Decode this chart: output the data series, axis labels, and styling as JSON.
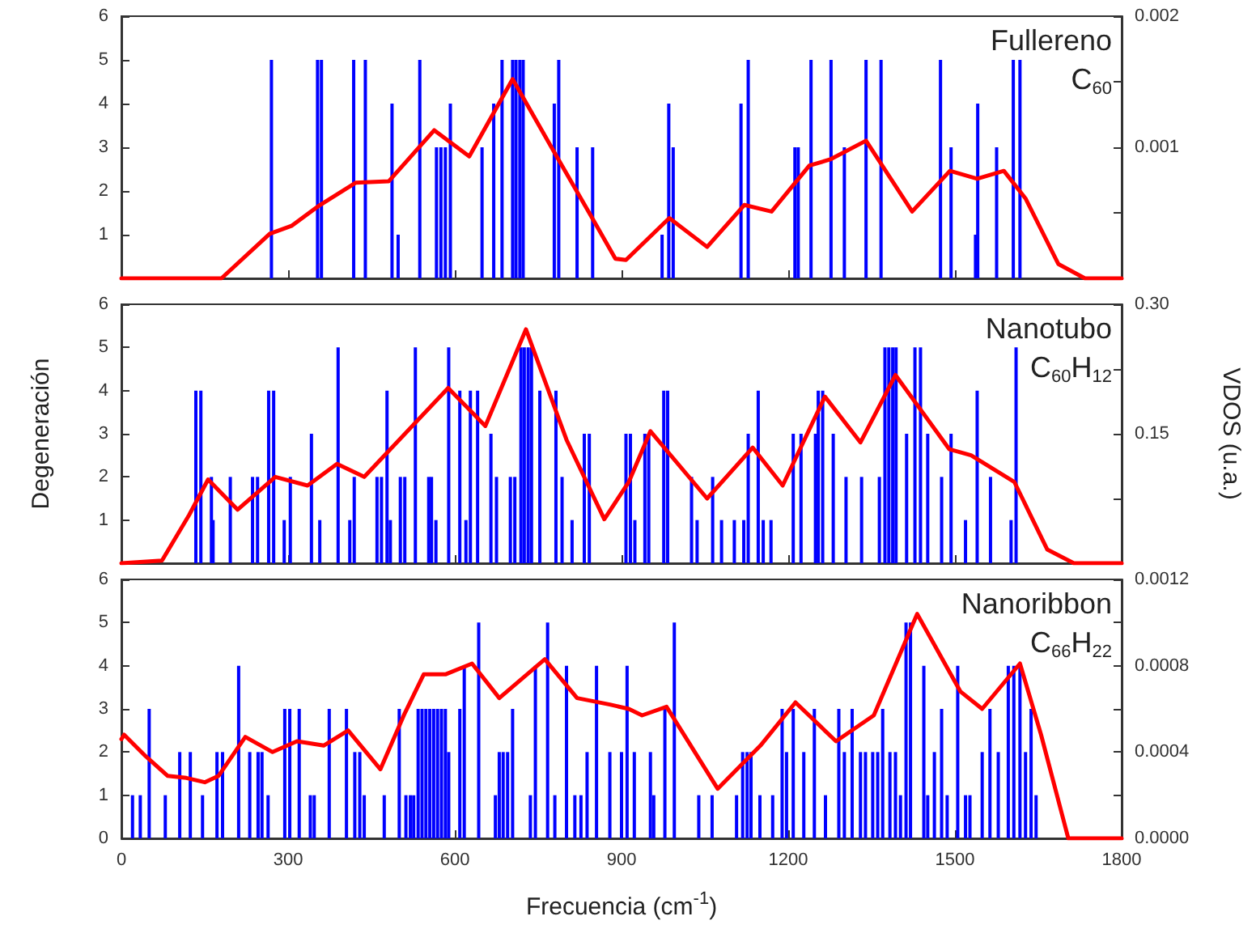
{
  "chart_data": [
    {
      "type": "bar",
      "marker": "none",
      "tick_labels": "y",
      "annotations": [
        "Fullereno",
        "C$_{60}$"
      ],
      "xlim": [
        0,
        1800
      ],
      "xticks": [
        0,
        300,
        600,
        900,
        1200,
        1500,
        1800
      ],
      "ylim": [
        0,
        6
      ],
      "yticks": [
        {
          "value": 0,
          "label": null
        },
        1,
        2,
        3,
        4,
        5,
        6
      ],
      "y2lim": [
        0,
        0.002
      ],
      "y2ticks": [
        {
          "value": 0,
          "label": null
        },
        {
          "value": 0.0005,
          "label": null
        },
        0.001,
        {
          "value": 0.0015,
          "label": null
        },
        0.002
      ],
      "series": [
        {
          "color": "#0000ff",
          "x": [
            270,
            353,
            360,
            418,
            439,
            487,
            498,
            537,
            567,
            575,
            583,
            592,
            649,
            670,
            685,
            704,
            710,
            717,
            723,
            779,
            787,
            820,
            848,
            973,
            985,
            993,
            1115,
            1128,
            1212,
            1218,
            1241,
            1277,
            1301,
            1340,
            1367,
            1474,
            1493,
            1537,
            1541,
            1575,
            1605,
            1617
          ],
          "values": [
            5,
            5,
            5,
            5,
            5,
            4,
            1,
            5,
            3,
            3,
            3,
            4,
            3,
            4,
            5,
            5,
            5,
            5,
            5,
            4,
            5,
            3,
            3,
            1,
            4,
            3,
            4,
            5,
            3,
            3,
            5,
            5,
            3,
            5,
            5,
            5,
            3,
            1,
            4,
            3,
            5,
            5
          ]
        },
        {
          "type": "line",
          "axis": "y2",
          "color": "#ff0000",
          "x": [
            0,
            180,
            267,
            306,
            354,
            422,
            481,
            563,
            626,
            704,
            782,
            850,
            889,
            908,
            986,
            1054,
            1121,
            1170,
            1238,
            1277,
            1340,
            1423,
            1491,
            1540,
            1588,
            1627,
            1686,
            1734,
            1800
          ],
          "values": [
            0,
            0,
            0.00034,
            0.0004,
            0.00055,
            0.00073,
            0.00074,
            0.00113,
            0.00093,
            0.00152,
            0.00094,
            0.00044,
            0.00015,
            0.00014,
            0.00046,
            0.00024,
            0.00056,
            0.00051,
            0.00086,
            0.00091,
            0.00105,
            0.00051,
            0.00082,
            0.00076,
            0.00082,
            0.00061,
            0.00011,
            0,
            0
          ]
        }
      ]
    },
    {
      "type": "bar",
      "marker": "none",
      "annotations": [
        "Nanotubo",
        "C$_{60}$H$_{12}$"
      ],
      "ylabel": "Degeneración",
      "y2label": "VDOS (u.a.)",
      "tick_labels": "y",
      "xlim": [
        0,
        1800
      ],
      "xticks": [
        0,
        300,
        600,
        900,
        1200,
        1500,
        1800
      ],
      "ylim": [
        0,
        6
      ],
      "yticks": [
        {
          "value": 0,
          "label": null
        },
        1,
        2,
        3,
        4,
        5,
        6
      ],
      "y2lim": [
        0,
        0.3
      ],
      "y2ticks": [
        {
          "value": 0,
          "label": null
        },
        {
          "value": 0.075,
          "label": null
        },
        0.15,
        {
          "value": 0.225,
          "label": null
        },
        {
          "value": 0.3,
          "label": "0.30"
        }
      ],
      "series": [
        {
          "color": "#0000ff",
          "x": [
            134,
            143,
            162,
            165,
            196,
            236,
            245,
            265,
            274,
            293,
            304,
            342,
            357,
            390,
            411,
            419,
            460,
            468,
            478,
            484,
            502,
            510,
            529,
            553,
            558,
            566,
            589,
            609,
            620,
            628,
            641,
            665,
            675,
            700,
            708,
            719,
            725,
            732,
            738,
            753,
            782,
            793,
            811,
            833,
            842,
            908,
            916,
            924,
            942,
            949,
            976,
            983,
            1026,
            1036,
            1064,
            1080,
            1103,
            1120,
            1128,
            1146,
            1155,
            1169,
            1209,
            1223,
            1249,
            1254,
            1262,
            1281,
            1304,
            1332,
            1364,
            1374,
            1381,
            1388,
            1394,
            1413,
            1428,
            1438,
            1451,
            1476,
            1493,
            1519,
            1540,
            1564,
            1601,
            1610
          ],
          "values": [
            4,
            4,
            2,
            1,
            2,
            2,
            2,
            4,
            4,
            1,
            2,
            3,
            1,
            5,
            1,
            2,
            2,
            2,
            4,
            1,
            2,
            2,
            5,
            2,
            2,
            1,
            5,
            4,
            1,
            4,
            4,
            3,
            2,
            2,
            2,
            5,
            5,
            5,
            5,
            4,
            4,
            2,
            1,
            3,
            3,
            3,
            3,
            1,
            3,
            3,
            4,
            4,
            2,
            1,
            2,
            1,
            1,
            1,
            3,
            4,
            1,
            1,
            3,
            3,
            3,
            4,
            4,
            3,
            2,
            2,
            2,
            5,
            5,
            5,
            5,
            3,
            5,
            5,
            3,
            2,
            3,
            1,
            4,
            2,
            1,
            5
          ]
        },
        {
          "type": "line",
          "axis": "y2",
          "color": "#ff0000",
          "x": [
            0,
            73,
            122,
            156,
            209,
            277,
            335,
            388,
            437,
            588,
            655,
            728,
            801,
            869,
            913,
            952,
            1054,
            1136,
            1190,
            1266,
            1330,
            1393,
            1490,
            1529,
            1607,
            1666,
            1714,
            1800
          ],
          "values": [
            0,
            0.003,
            0.056,
            0.097,
            0.062,
            0.1,
            0.09,
            0.115,
            0.1,
            0.203,
            0.159,
            0.271,
            0.143,
            0.051,
            0.094,
            0.153,
            0.075,
            0.134,
            0.09,
            0.193,
            0.14,
            0.218,
            0.132,
            0.125,
            0.094,
            0.016,
            0,
            0
          ]
        }
      ]
    },
    {
      "type": "bar",
      "marker": "none",
      "annotations": [
        "Nanoribbon",
        "C$_{66}$H$_{22}$"
      ],
      "xlabel": "Frecuencia (cm$^{-1}$)",
      "xlim": [
        0,
        1800
      ],
      "xticks": [
        0,
        300,
        600,
        900,
        1200,
        1500,
        1800
      ],
      "ylim": [
        0,
        6
      ],
      "yticks": [
        0,
        1,
        2,
        3,
        4,
        5,
        6
      ],
      "y2lim": [
        0,
        0.0012
      ],
      "y2ticks": [
        {
          "value": 0,
          "label": "0.0000"
        },
        {
          "value": 0.0002,
          "label": null
        },
        {
          "value": 0.0004,
          "label": "0.0004"
        },
        {
          "value": 0.0006,
          "label": null
        },
        {
          "value": 0.0008,
          "label": "0.0008"
        },
        {
          "value": 0.001,
          "label": null
        },
        {
          "value": 0.0012,
          "label": "0.0012"
        }
      ],
      "series": [
        {
          "color": "#0000ff",
          "x": [
            20,
            34,
            50,
            79,
            105,
            124,
            146,
            172,
            182,
            211,
            231,
            246,
            253,
            264,
            294,
            303,
            320,
            340,
            347,
            374,
            405,
            420,
            429,
            437,
            473,
            500,
            512,
            520,
            526,
            534,
            541,
            548,
            555,
            562,
            569,
            576,
            583,
            589,
            609,
            617,
            643,
            673,
            680,
            687,
            695,
            704,
            736,
            745,
            767,
            780,
            801,
            816,
            827,
            838,
            855,
            879,
            900,
            910,
            923,
            952,
            958,
            978,
            995,
            1039,
            1063,
            1107,
            1118,
            1126,
            1133,
            1149,
            1172,
            1189,
            1197,
            1209,
            1228,
            1247,
            1267,
            1291,
            1301,
            1315,
            1330,
            1339,
            1352,
            1361,
            1370,
            1383,
            1393,
            1402,
            1412,
            1420,
            1444,
            1451,
            1463,
            1476,
            1486,
            1505,
            1519,
            1527,
            1549,
            1563,
            1578,
            1596,
            1606,
            1617,
            1627,
            1637,
            1646
          ],
          "values": [
            1,
            1,
            3,
            1,
            2,
            2,
            1,
            2,
            2,
            4,
            2,
            2,
            2,
            1,
            3,
            3,
            3,
            1,
            1,
            3,
            3,
            2,
            2,
            1,
            1,
            3,
            1,
            1,
            1,
            3,
            3,
            3,
            3,
            3,
            3,
            3,
            3,
            2,
            3,
            4,
            5,
            1,
            2,
            2,
            2,
            3,
            1,
            4,
            5,
            1,
            4,
            1,
            1,
            2,
            4,
            2,
            2,
            4,
            2,
            2,
            1,
            3,
            5,
            1,
            1,
            1,
            2,
            2,
            2,
            1,
            1,
            3,
            2,
            3,
            2,
            3,
            1,
            3,
            2,
            3,
            2,
            2,
            2,
            2,
            3,
            2,
            2,
            1,
            5,
            5,
            4,
            1,
            2,
            3,
            1,
            4,
            1,
            1,
            2,
            3,
            2,
            4,
            4,
            4,
            2,
            3,
            1
          ]
        },
        {
          "type": "line",
          "axis": "y2",
          "color": "#ff0000",
          "x": [
            0,
            5,
            44,
            83,
            117,
            150,
            175,
            223,
            272,
            316,
            364,
            408,
            466,
            510,
            544,
            583,
            631,
            680,
            762,
            820,
            879,
            913,
            937,
            981,
            1073,
            1150,
            1213,
            1286,
            1354,
            1432,
            1510,
            1549,
            1617,
            1655,
            1704,
            1743,
            1800
          ],
          "values": [
            0.00046,
            0.00048,
            0.00038,
            0.00029,
            0.00028,
            0.00026,
            0.00029,
            0.00047,
            0.0004,
            0.00045,
            0.00043,
            0.0005,
            0.00032,
            0.00058,
            0.00076,
            0.00076,
            0.00081,
            0.00065,
            0.00083,
            0.00065,
            0.00062,
            0.0006,
            0.00057,
            0.00061,
            0.00023,
            0.00043,
            0.00063,
            0.00045,
            0.00057,
            0.00104,
            0.00068,
            0.0006,
            0.00081,
            0.00048,
            0,
            0,
            0
          ]
        }
      ]
    }
  ]
}
